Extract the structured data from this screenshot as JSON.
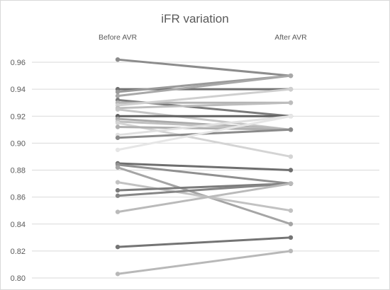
{
  "chart_data": {
    "type": "line",
    "title": "iFR variation",
    "categories": [
      "Before AVR",
      "After AVR"
    ],
    "ylim": [
      0.8,
      0.96
    ],
    "yticks": [
      "0.80",
      "0.82",
      "0.84",
      "0.86",
      "0.88",
      "0.90",
      "0.92",
      "0.94",
      "0.96"
    ],
    "grid": true,
    "legend": "none",
    "series": [
      {
        "values": [
          0.962,
          0.95
        ],
        "color": "#8c8c8c"
      },
      {
        "values": [
          0.94,
          0.94
        ],
        "color": "#707070"
      },
      {
        "values": [
          0.938,
          0.95
        ],
        "color": "#9a9a9a"
      },
      {
        "values": [
          0.935,
          0.95
        ],
        "color": "#a8a8a8"
      },
      {
        "values": [
          0.932,
          0.92
        ],
        "color": "#7a7a7a"
      },
      {
        "values": [
          0.93,
          0.93
        ],
        "color": "#b4b4b4"
      },
      {
        "values": [
          0.928,
          0.94
        ],
        "color": "#cfcfcf"
      },
      {
        "values": [
          0.926,
          0.93
        ],
        "color": "#bdbdbd"
      },
      {
        "values": [
          0.925,
          0.91
        ],
        "color": "#c6c6c6"
      },
      {
        "values": [
          0.92,
          0.92
        ],
        "color": "#606060"
      },
      {
        "values": [
          0.918,
          0.91
        ],
        "color": "#aaaaaa"
      },
      {
        "values": [
          0.916,
          0.91
        ],
        "color": "#c0c0c0"
      },
      {
        "values": [
          0.915,
          0.89
        ],
        "color": "#d4d4d4"
      },
      {
        "values": [
          0.912,
          0.91
        ],
        "color": "#b0b0b0"
      },
      {
        "values": [
          0.906,
          0.92
        ],
        "color": "#e0e0e0"
      },
      {
        "values": [
          0.904,
          0.91
        ],
        "color": "#8a8a8a"
      },
      {
        "values": [
          0.895,
          0.92
        ],
        "color": "#e6e6e6"
      },
      {
        "values": [
          0.885,
          0.88
        ],
        "color": "#6e6e6e"
      },
      {
        "values": [
          0.884,
          0.87
        ],
        "color": "#909090"
      },
      {
        "values": [
          0.882,
          0.84
        ],
        "color": "#a5a5a5"
      },
      {
        "values": [
          0.871,
          0.85
        ],
        "color": "#c2c2c2"
      },
      {
        "values": [
          0.865,
          0.87
        ],
        "color": "#7c7c7c"
      },
      {
        "values": [
          0.861,
          0.87
        ],
        "color": "#868686"
      },
      {
        "values": [
          0.849,
          0.87
        ],
        "color": "#bababa"
      },
      {
        "values": [
          0.823,
          0.83
        ],
        "color": "#747474"
      },
      {
        "values": [
          0.803,
          0.82
        ],
        "color": "#b8b8b8"
      }
    ]
  }
}
